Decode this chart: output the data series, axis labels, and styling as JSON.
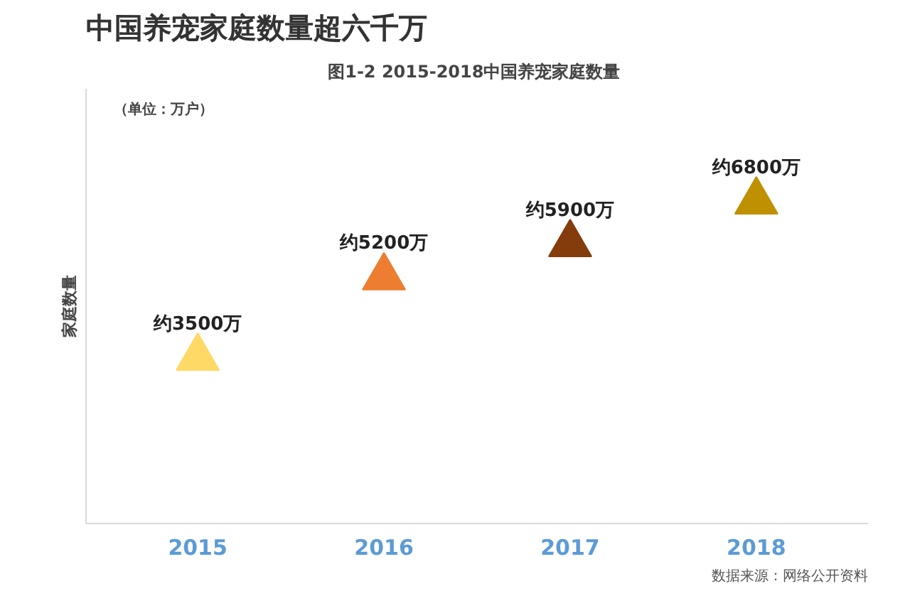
{
  "chart_data": {
    "type": "scatter",
    "title": "中国养宠家庭数量超六千万",
    "subtitle": "图1-2  2015-2018中国养宠家庭数量",
    "ylabel": "家庭数量",
    "annotations": [
      "（单位：万户）",
      "数据来源：网络公开资料"
    ],
    "categories": [
      "2015",
      "2016",
      "2017",
      "2018"
    ],
    "values": [
      3500,
      5200,
      5900,
      6800
    ],
    "value_labels": [
      "约3500万",
      "约5200万",
      "约5900万",
      "约6800万"
    ],
    "colors": [
      "#ffd966",
      "#ed7d31",
      "#843c0c",
      "#bf9000"
    ],
    "marker": "triangle",
    "grid": false,
    "legend": false,
    "tick_labels": "x"
  }
}
